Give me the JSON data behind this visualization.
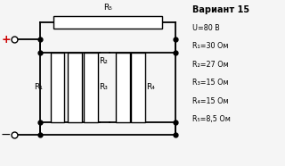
{
  "title": "Вариант 15",
  "params": [
    "U=80 В",
    "R₁=30 Ом",
    "R₂=27 Ом",
    "R₃=15 Ом",
    "R₄=15 Ом",
    "R₅=8,5 Ом"
  ],
  "bg_color": "#f5f5f5",
  "plus_color": "#cc0000",
  "minus_color": "#000000",
  "wire_color": "#000000",
  "dot_color": "#000000",
  "label_color": "#000000",
  "figsize": [
    3.2,
    1.86
  ],
  "dpi": 100
}
